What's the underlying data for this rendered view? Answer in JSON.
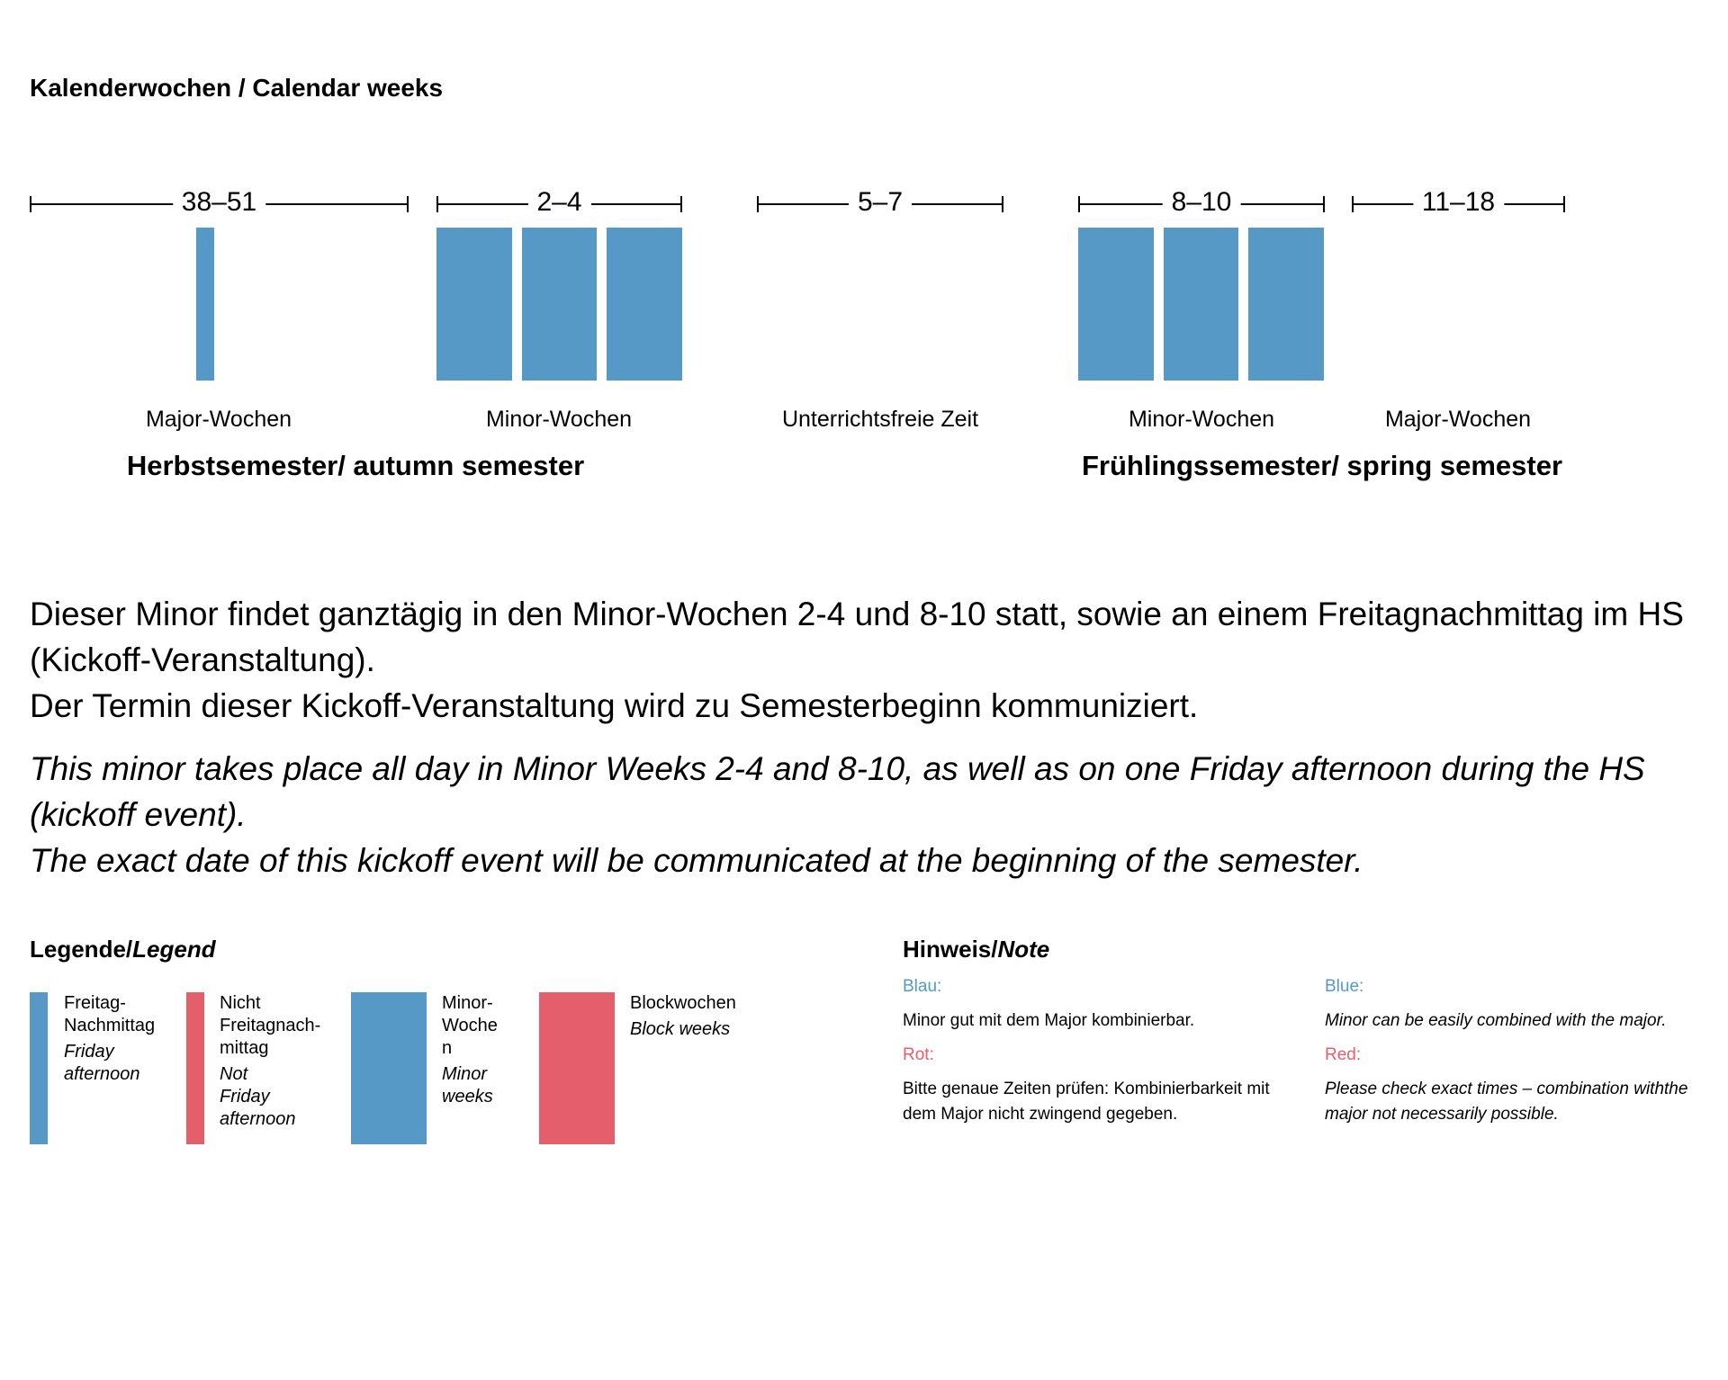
{
  "title": "Kalenderwochen / Calendar weeks",
  "colors": {
    "blue": "#5698c6",
    "red": "#e55e6b"
  },
  "calendar": {
    "ranges": [
      {
        "label": "38–51",
        "period": "Major-Wochen",
        "bars": 1,
        "bar_type": "Friday afternoon"
      },
      {
        "label": "2–4",
        "period": "Minor-Wochen",
        "bars": 3,
        "bar_type": "Minor weeks"
      },
      {
        "label": "5–7",
        "period": "Unterrichtsfreie Zeit",
        "bars": 0
      },
      {
        "label": "8–10",
        "period": "Minor-Wochen",
        "bars": 3,
        "bar_type": "Minor weeks"
      },
      {
        "label": "11–18",
        "period": "Major-Wochen",
        "bars": 0
      }
    ],
    "semesters": [
      "Herbstsemester/ autumn semester",
      "Frühlingssemester/ spring semester"
    ]
  },
  "description": {
    "de": [
      "Dieser Minor findet ganztägig in den Minor-Wochen 2-4 und 8-10 statt, sowie an einem Freitagnachmittag im HS (Kickoff-Veranstaltung).",
      "Der Termin dieser Kickoff-Veranstaltung wird zu Semesterbeginn kommuniziert."
    ],
    "en": [
      "This minor takes place all day in Minor Weeks 2-4 and 8-10, as well as on one Friday afternoon during the HS (kickoff event).",
      "The exact date of this kickoff event will be communicated at the beginning of the semester."
    ]
  },
  "legend": {
    "title_de": "Legende/",
    "title_en": "Legend",
    "items": [
      {
        "de": "Freitag-Nachmittag",
        "en": "Friday afternoon",
        "color": "blue"
      },
      {
        "de": "Nicht Freitagnach-mittag",
        "en": "Not Friday afternoon",
        "color": "red"
      },
      {
        "de": "Minor-Wochen",
        "en": "Minor weeks",
        "color": "blue"
      },
      {
        "de": "Blockwochen",
        "en": "Block weeks",
        "color": "red"
      }
    ]
  },
  "note": {
    "title_de": "Hinweis/",
    "title_en": "Note",
    "de": {
      "blue_label": "Blau:",
      "blue_text": "Minor gut mit dem Major kombinierbar.",
      "red_label": "Rot:",
      "red_text": "Bitte genaue Zeiten prüfen: Kombinierbarkeit mit dem Major nicht zwingend gegeben."
    },
    "en": {
      "blue_label": "Blue:",
      "blue_text": "Minor can be easily combined with the major.",
      "red_label": "Red:",
      "red_text": "Please check exact times – combination withthe major not necessarily possible."
    }
  }
}
